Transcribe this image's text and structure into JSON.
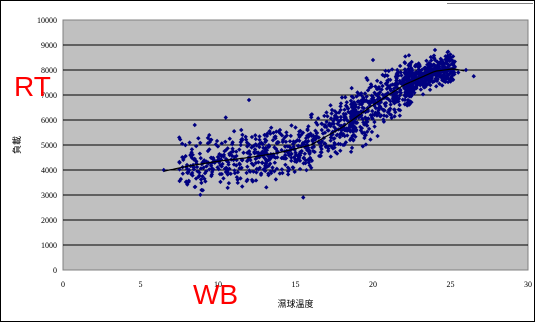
{
  "overlays": {
    "left": "RT",
    "bottom": "WB"
  },
  "chart_data": {
    "type": "scatter",
    "title": "",
    "xlabel": "濕球溫度",
    "ylabel": "負載",
    "xlim": [
      0,
      30
    ],
    "ylim": [
      0,
      10000
    ],
    "xticks": [
      "0",
      "5",
      "10",
      "15",
      "20",
      "25",
      "30"
    ],
    "yticks": [
      "0",
      "1000",
      "2000",
      "3000",
      "4000",
      "5000",
      "6000",
      "7000",
      "8000",
      "9000",
      "10000"
    ],
    "grid": "horizontal",
    "legend": "none",
    "colors": {
      "plot_bg": "#c0c0c0",
      "marker": "#000080",
      "trend": "#000000",
      "grid": "#000000"
    },
    "trend_line": {
      "x": [
        6.5,
        8,
        10,
        12,
        14,
        16,
        18,
        20,
        22,
        24,
        25.2,
        26
      ],
      "y": [
        3950,
        4150,
        4350,
        4500,
        4700,
        5000,
        5700,
        6600,
        7400,
        7950,
        8050,
        7950
      ]
    },
    "cloud": {
      "note_points_shown": 1400,
      "x_range": [
        6.5,
        26.5
      ],
      "y_min_max": [
        2900,
        8800
      ]
    },
    "series": [
      {
        "x": [
          6.5,
          7.5,
          8.0,
          8.5,
          9.0,
          9.5,
          10.0,
          10.5,
          11.0,
          11.5,
          12.0,
          12.5,
          13.0,
          13.5,
          14.0,
          14.5,
          15.0,
          15.5,
          16.0,
          16.5,
          17.0,
          17.5,
          18.0,
          18.5,
          19.0,
          19.5,
          20.0,
          20.5,
          21.0,
          21.5,
          22.0,
          22.5,
          23.0,
          23.5,
          24.0,
          24.5,
          25.0,
          25.5,
          26.0,
          26.5
        ],
        "y": [
          4000,
          5300,
          4200,
          5800,
          4300,
          5200,
          4400,
          6100,
          4400,
          5600,
          6800,
          4700,
          5400,
          4600,
          5600,
          4700,
          5700,
          2900,
          6200,
          5300,
          6300,
          5000,
          6900,
          5800,
          7100,
          6100,
          8400,
          6800,
          7600,
          7700,
          7600,
          7900,
          8200,
          8000,
          8800,
          8300,
          8500,
          7900,
          8000,
          7750
        ]
      }
    ]
  }
}
